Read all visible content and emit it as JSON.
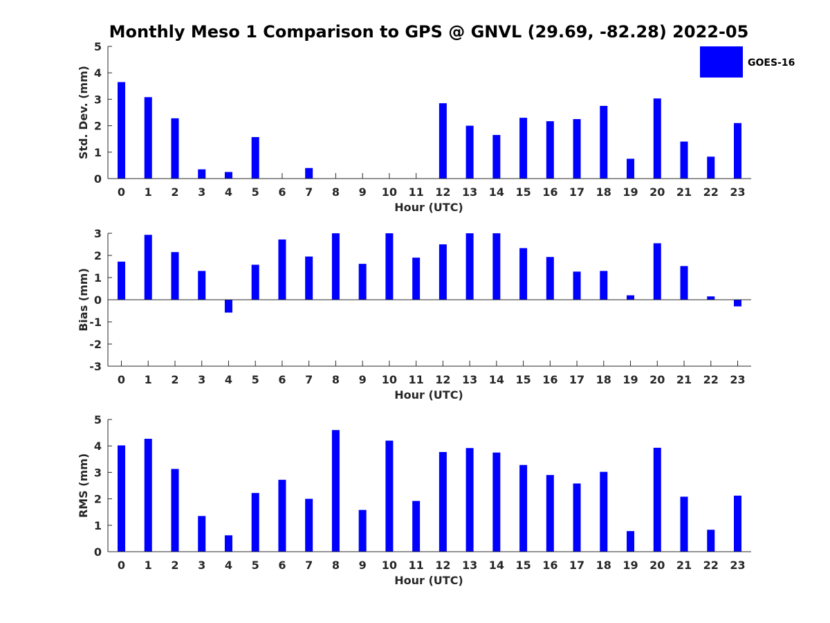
{
  "title": "Monthly Meso 1 Comparison to GPS @ GNVL (29.69, -82.28) 2022-05",
  "legend": {
    "label": "GOES-16",
    "color": "#0000ff",
    "placement": "top-right"
  },
  "chart_data": [
    {
      "type": "bar",
      "title": "Monthly Meso 1 Comparison to GPS @ GNVL (29.69, -82.28) 2022-05",
      "xlabel": "Hour (UTC)",
      "ylabel": "Std. Dev. (mm)",
      "ylim": [
        0,
        5
      ],
      "yticks": [
        "0",
        "1",
        "2",
        "3",
        "4",
        "5"
      ],
      "categories": [
        "0",
        "1",
        "2",
        "3",
        "4",
        "5",
        "6",
        "7",
        "8",
        "9",
        "10",
        "11",
        "12",
        "13",
        "14",
        "15",
        "16",
        "17",
        "18",
        "19",
        "20",
        "21",
        "22",
        "23"
      ],
      "series": [
        {
          "name": "GOES-16",
          "color": "#0000ff",
          "values": [
            3.65,
            3.08,
            2.28,
            0.35,
            0.25,
            1.57,
            0,
            0.4,
            0,
            0,
            0,
            0,
            2.85,
            2.0,
            1.65,
            2.3,
            2.17,
            2.25,
            2.75,
            0.75,
            3.03,
            1.4,
            0.83,
            2.1
          ]
        }
      ]
    },
    {
      "type": "bar",
      "xlabel": "Hour (UTC)",
      "ylabel": "Bias (mm)",
      "ylim": [
        -3,
        3
      ],
      "yticks": [
        "-3",
        "-2",
        "-1",
        "0",
        "1",
        "2",
        "3"
      ],
      "categories": [
        "0",
        "1",
        "2",
        "3",
        "4",
        "5",
        "6",
        "7",
        "8",
        "9",
        "10",
        "11",
        "12",
        "13",
        "14",
        "15",
        "16",
        "17",
        "18",
        "19",
        "20",
        "21",
        "22",
        "23"
      ],
      "series": [
        {
          "name": "GOES-16",
          "color": "#0000ff",
          "values": [
            1.72,
            2.93,
            2.15,
            1.3,
            -0.58,
            1.58,
            2.72,
            1.95,
            3.0,
            1.62,
            3.0,
            1.9,
            2.5,
            3.0,
            3.0,
            2.33,
            1.93,
            1.27,
            1.3,
            0.2,
            2.55,
            1.52,
            0.15,
            -0.3
          ]
        }
      ]
    },
    {
      "type": "bar",
      "xlabel": "Hour (UTC)",
      "ylabel": "RMS (mm)",
      "ylim": [
        0,
        5
      ],
      "yticks": [
        "0",
        "1",
        "2",
        "3",
        "4",
        "5"
      ],
      "categories": [
        "0",
        "1",
        "2",
        "3",
        "4",
        "5",
        "6",
        "7",
        "8",
        "9",
        "10",
        "11",
        "12",
        "13",
        "14",
        "15",
        "16",
        "17",
        "18",
        "19",
        "20",
        "21",
        "22",
        "23"
      ],
      "series": [
        {
          "name": "GOES-16",
          "color": "#0000ff",
          "values": [
            4.02,
            4.27,
            3.13,
            1.35,
            0.62,
            2.22,
            2.72,
            2.0,
            4.6,
            1.58,
            4.2,
            1.92,
            3.77,
            3.92,
            3.75,
            3.28,
            2.9,
            2.58,
            3.02,
            0.78,
            3.93,
            2.08,
            0.83,
            2.12
          ]
        }
      ]
    }
  ]
}
